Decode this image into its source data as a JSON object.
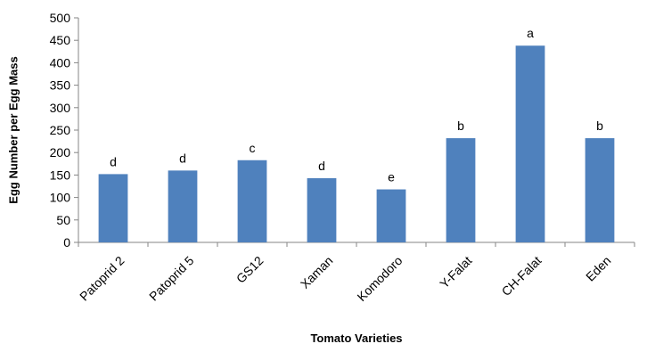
{
  "chart_data": {
    "type": "bar",
    "title": "",
    "xlabel": "Tomato Varieties",
    "ylabel": "Egg Number per Egg Mass",
    "ylim": [
      0,
      500
    ],
    "yticks": [
      0,
      50,
      100,
      150,
      200,
      250,
      300,
      350,
      400,
      450,
      500
    ],
    "grid": false,
    "legend": "none",
    "bar_color": "#4f81bd",
    "categories": [
      "Patoprid 2",
      "Patoprid 5",
      "GS12",
      "Xaman",
      "Komodoro",
      "Y-Falat",
      "CH-Falat",
      "Eden"
    ],
    "values": [
      152,
      160,
      183,
      143,
      118,
      232,
      438,
      232
    ],
    "significance_labels": [
      "d",
      "d",
      "c",
      "d",
      "e",
      "b",
      "a",
      "b"
    ]
  }
}
